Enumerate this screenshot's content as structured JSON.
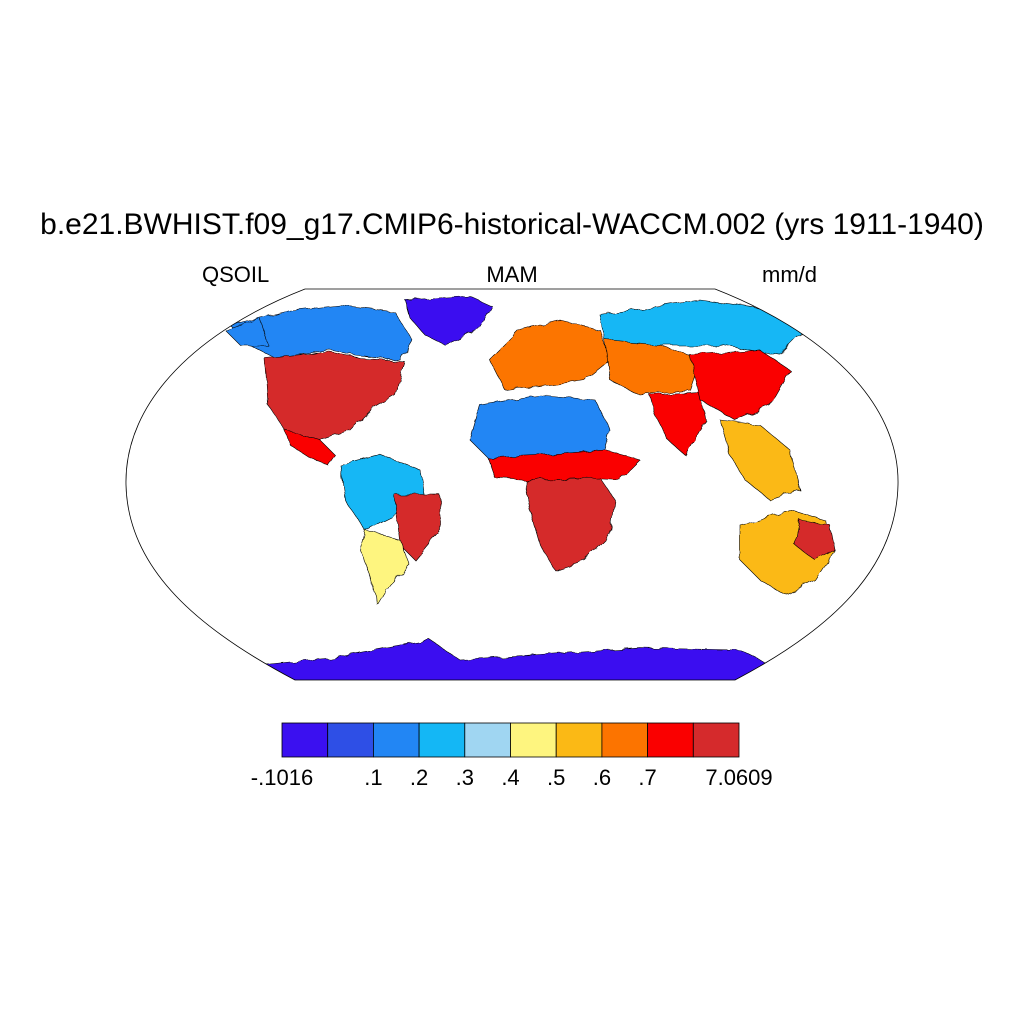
{
  "title": "b.e21.BWHIST.f09_g17.CMIP6-historical-WACCM.002 (yrs 1911-1940)",
  "left_label": "QSOIL",
  "center_label": "MAM",
  "right_label": "mm/d",
  "colorbar": {
    "colors": [
      "#3b10f0",
      "#2e4fe6",
      "#2286f4",
      "#14b7f5",
      "#a0d6f2",
      "#fef57f",
      "#fbb915",
      "#fc7400",
      "#fa0000",
      "#d52a2c"
    ],
    "labels": [
      "-.1016",
      ".1",
      ".2",
      ".3",
      ".4",
      ".5",
      ".6",
      ".7",
      "7.0609"
    ]
  },
  "map": {
    "projection": "Robinson",
    "variable": "QSOIL",
    "region_levels": [
      {
        "region": "Greenland",
        "level": 0
      },
      {
        "region": "Antarctica",
        "level": 0
      },
      {
        "region": "Canada",
        "level": 2
      },
      {
        "region": "Alaska",
        "level": 2
      },
      {
        "region": "United States",
        "level": 9
      },
      {
        "region": "Mexico",
        "level": 8
      },
      {
        "region": "Amazon",
        "level": 3
      },
      {
        "region": "Eastern Brazil",
        "level": 9
      },
      {
        "region": "Argentina",
        "level": 5
      },
      {
        "region": "Sahara",
        "level": 2
      },
      {
        "region": "Sahel",
        "level": 8
      },
      {
        "region": "Southern Africa",
        "level": 9
      },
      {
        "region": "Europe",
        "level": 7
      },
      {
        "region": "Siberia",
        "level": 3
      },
      {
        "region": "Central Asia",
        "level": 7
      },
      {
        "region": "India",
        "level": 8
      },
      {
        "region": "China",
        "level": 8
      },
      {
        "region": "Southeast Asia",
        "level": 6
      },
      {
        "region": "Australia",
        "level": 6
      },
      {
        "region": "Eastern Australia",
        "level": 9
      }
    ]
  }
}
